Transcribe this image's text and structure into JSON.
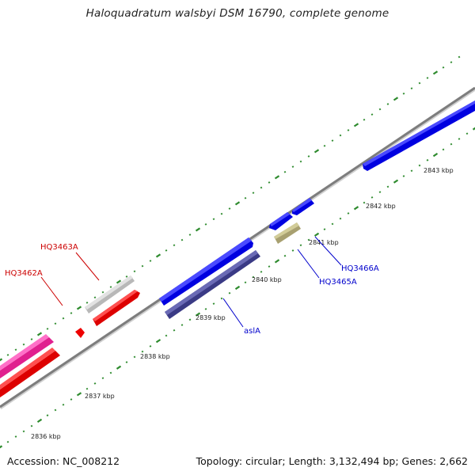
{
  "title": "Haloquadratum walsbyi DSM 16790, complete genome",
  "footer": {
    "accession": "Accession: NC_008212",
    "summary": "Topology: circular; Length: 3,132,494 bp; Genes: 2,662"
  },
  "colors": {
    "backbone": "#8a8a8a",
    "tick": "#2e8b2e",
    "gene_label_red": "#cc0000",
    "gene_label_blue": "#0000cc"
  },
  "ticks": [
    {
      "label": "2836 kbp"
    },
    {
      "label": "2837 kbp"
    },
    {
      "label": "2838 kbp"
    },
    {
      "label": "2839 kbp"
    },
    {
      "label": "2840 kbp"
    },
    {
      "label": "2841 kbp"
    },
    {
      "label": "2842 kbp"
    },
    {
      "label": "2843 kbp"
    }
  ],
  "gene_labels": [
    {
      "text": "HQ3463A",
      "color": "#cc0000"
    },
    {
      "text": "HQ3462A",
      "color": "#cc0000"
    },
    {
      "text": "aslA",
      "color": "#0000cc"
    },
    {
      "text": "HQ3465A",
      "color": "#0000cc"
    },
    {
      "text": "HQ3466A",
      "color": "#0000cc"
    }
  ]
}
